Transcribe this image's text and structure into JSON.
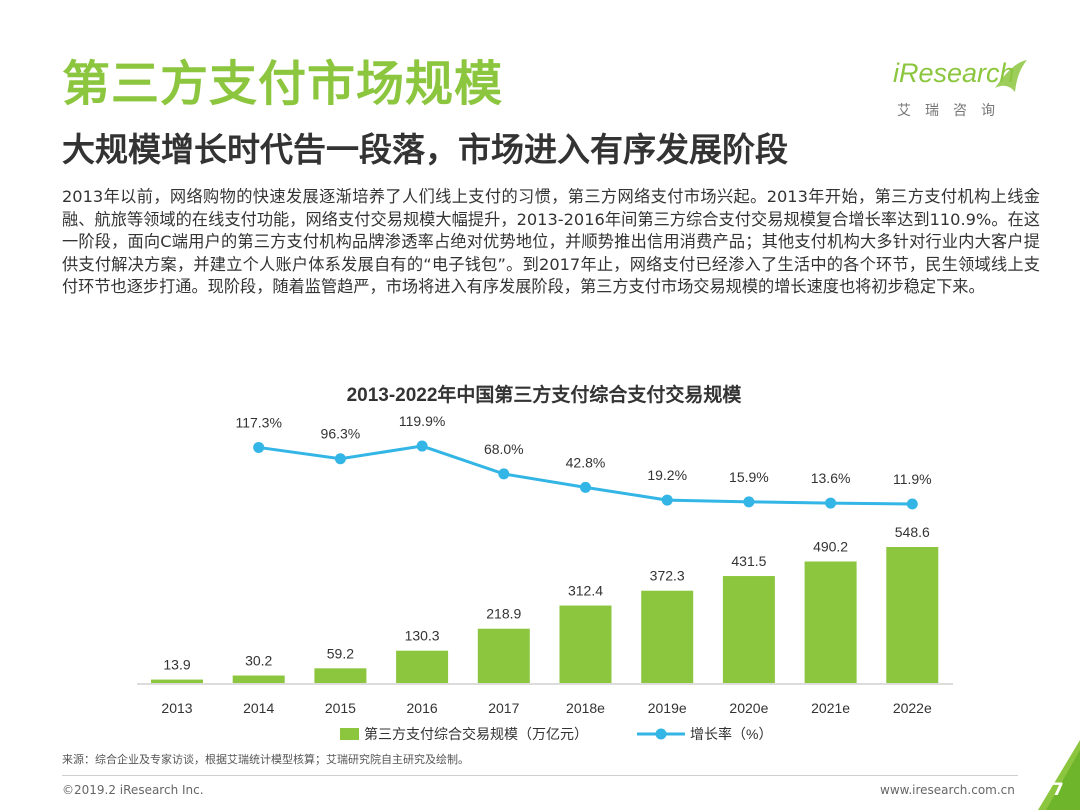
{
  "header": {
    "title": "第三方支付市场规模",
    "subtitle": "大规模增长时代告一段落，市场进入有序发展阶段"
  },
  "logo": {
    "main": "iResearch",
    "sub": "艾瑞咨询"
  },
  "body_text": "2013年以前，网络购物的快速发展逐渐培养了人们线上支付的习惯，第三方网络支付市场兴起。2013年开始，第三方支付机构上线金融、航旅等领域的在线支付功能，网络支付交易规模大幅提升，2013-2016年间第三方综合支付交易规模复合增长率达到110.9%。在这一阶段，面向C端用户的第三方支付机构品牌渗透率占绝对优势地位，并顺势推出信用消费产品；其他支付机构大多针对行业内大客户提供支付解决方案，并建立个人账户体系发展自有的“电子钱包”。到2017年止，网络支付已经渗入了生活中的各个环节，民生领域线上支付环节也逐步打通。现阶段，随着监管趋严，市场将进入有序发展阶段，第三方支付市场交易规模的增长速度也将初步稳定下来。",
  "chart_data": {
    "type": "bar",
    "title": "2013-2022年中国第三方支付综合支付交易规模",
    "categories": [
      "2013",
      "2014",
      "2015",
      "2016",
      "2017",
      "2018e",
      "2019e",
      "2020e",
      "2021e",
      "2022e"
    ],
    "series": [
      {
        "name": "第三方支付综合交易规模（万亿元）",
        "type": "bar",
        "values": [
          13.9,
          30.2,
          59.2,
          130.3,
          218.9,
          312.4,
          372.3,
          431.5,
          490.2,
          548.6
        ],
        "labels": [
          "13.9",
          "30.2",
          "59.2",
          "130.3",
          "218.9",
          "312.4",
          "372.3",
          "431.5",
          "490.2",
          "548.6"
        ],
        "color": "#8cc63f"
      },
      {
        "name": "增长率（%）",
        "type": "line",
        "values": [
          null,
          117.3,
          96.3,
          119.9,
          68.0,
          42.8,
          19.2,
          15.9,
          13.6,
          11.9
        ],
        "labels": [
          "",
          "117.3%",
          "96.3%",
          "119.9%",
          "68.0%",
          "42.8%",
          "19.2%",
          "15.9%",
          "13.6%",
          "11.9%"
        ],
        "color": "#33b5e5"
      }
    ],
    "legend_position": "bottom",
    "grid": false
  },
  "source": "来源：综合企业及专家访谈，根据艾瑞统计模型核算；艾瑞研究院自主研究及绘制。",
  "footer": {
    "copyright": "©2019.2 iResearch Inc.",
    "website": "www.iresearch.com.cn",
    "page": "7"
  }
}
